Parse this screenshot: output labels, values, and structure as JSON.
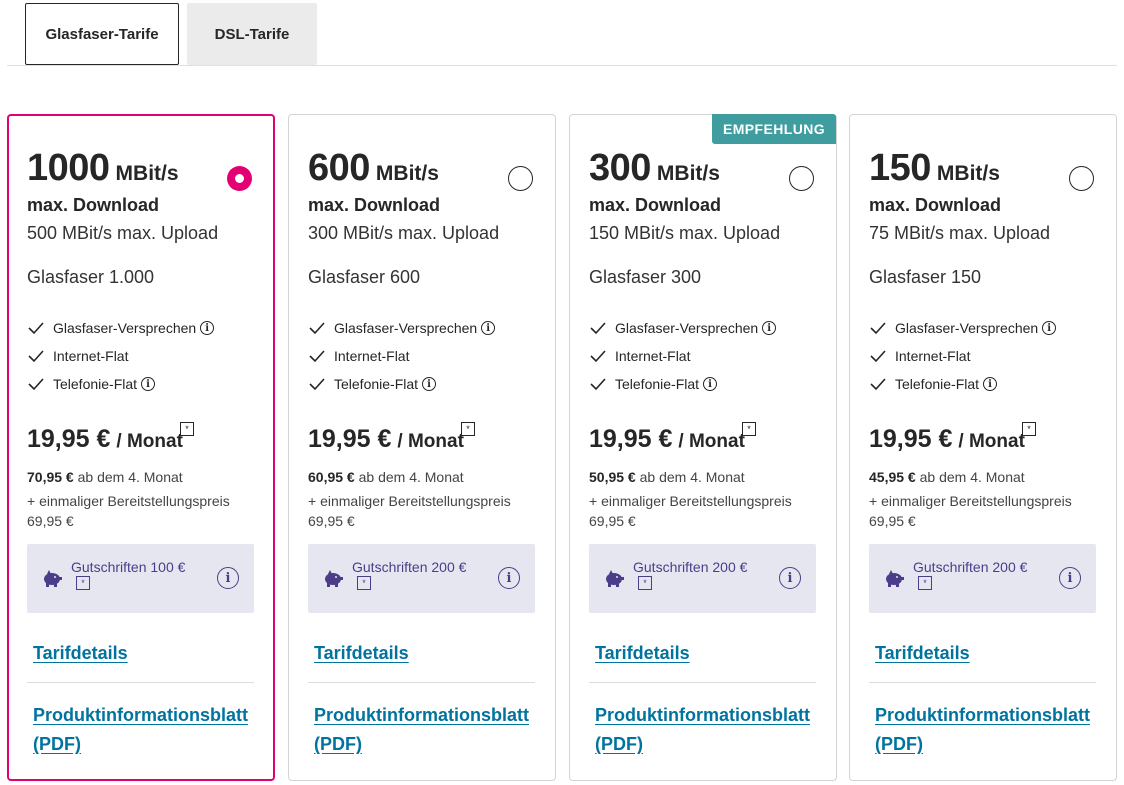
{
  "tabs": [
    {
      "label": "Glasfaser-Tarife",
      "active": true
    },
    {
      "label": "DSL-Tarife",
      "active": false
    }
  ],
  "common": {
    "download_label": "max. Download",
    "per_month": "/ Monat",
    "after_text": "ab dem 4. Monat",
    "setup_line1": "+ einmaliger Bereitstellungspreis",
    "setup_line2": "69,95 €",
    "features": [
      "Glasfaser-Versprechen",
      "Internet-Flat",
      "Telefonie-Flat"
    ],
    "link_details": "Tarifdetails",
    "link_pdf": "Produktinformationsblatt (PDF)",
    "star": "*",
    "info": "i",
    "accent_color": "#e20074",
    "link_color": "#00739f",
    "badge_color": "#3f9da0"
  },
  "cards": [
    {
      "speed": "1000",
      "unit": "MBit/s",
      "upload": "500 MBit/s max. Upload",
      "plan": "Glasfaser 1.000",
      "price": "19,95 €",
      "after_price": "70,95 €",
      "voucher": "Gutschriften 100 €",
      "selected": true,
      "badge": ""
    },
    {
      "speed": "600",
      "unit": "MBit/s",
      "upload": "300 MBit/s max. Upload",
      "plan": "Glasfaser 600",
      "price": "19,95 €",
      "after_price": "60,95 €",
      "voucher": "Gutschriften 200 €",
      "selected": false,
      "badge": ""
    },
    {
      "speed": "300",
      "unit": "MBit/s",
      "upload": "150 MBit/s max. Upload",
      "plan": "Glasfaser 300",
      "price": "19,95 €",
      "after_price": "50,95 €",
      "voucher": "Gutschriften 200 €",
      "selected": false,
      "badge": "EMPFEHLUNG"
    },
    {
      "speed": "150",
      "unit": "MBit/s",
      "upload": "75 MBit/s max. Upload",
      "plan": "Glasfaser 150",
      "price": "19,95 €",
      "after_price": "45,95 €",
      "voucher": "Gutschriften 200 €",
      "selected": false,
      "badge": ""
    }
  ]
}
